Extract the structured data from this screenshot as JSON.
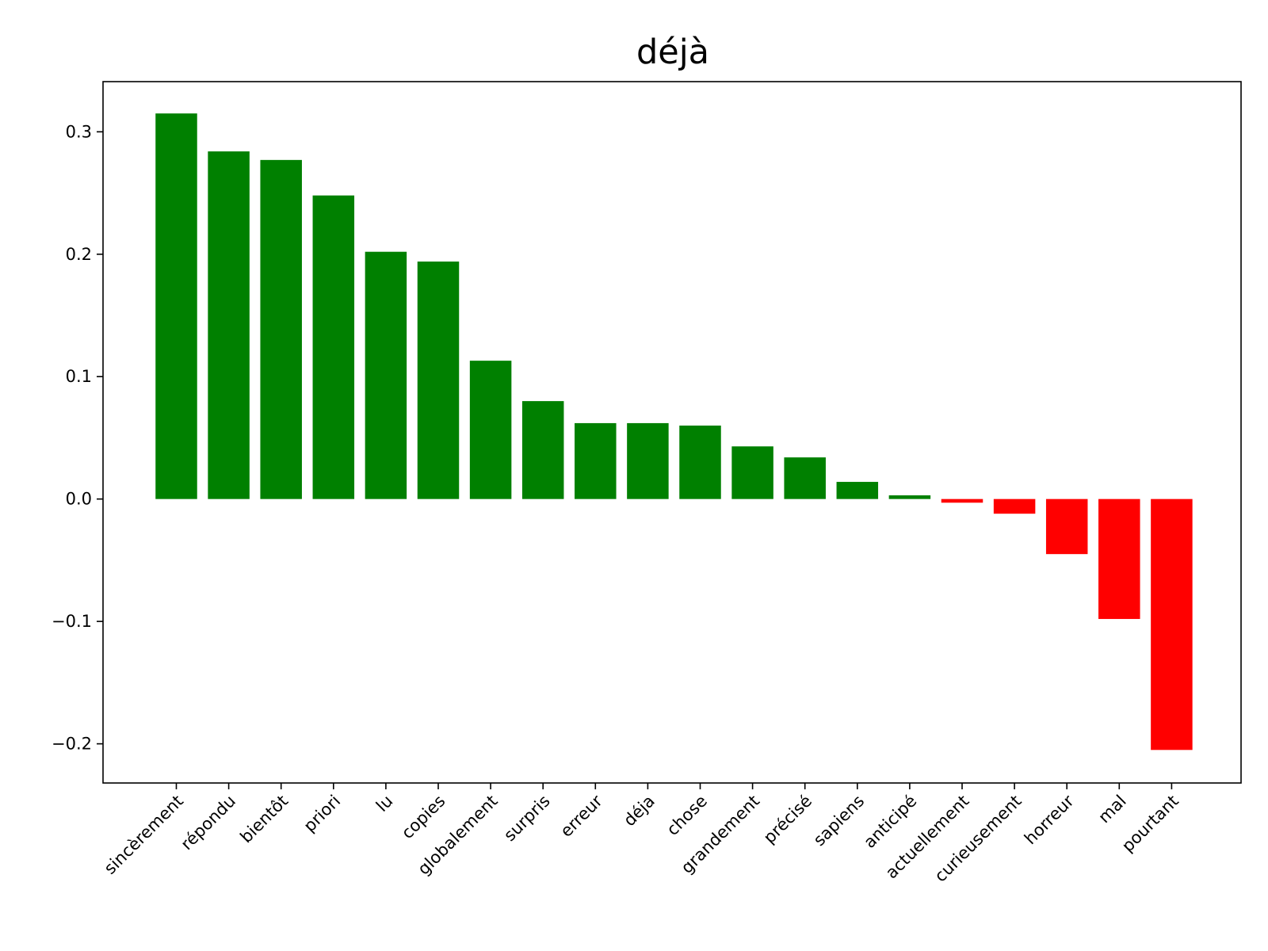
{
  "chart_data": {
    "type": "bar",
    "title": "déjà",
    "xlabel": "",
    "ylabel": "",
    "categories": [
      "sincèrement",
      "répondu",
      "bientôt",
      "priori",
      "lu",
      "copies",
      "globalement",
      "surpris",
      "erreur",
      "déja",
      "chose",
      "grandement",
      "précisé",
      "sapiens",
      "anticipé",
      "actuellement",
      "curieusement",
      "horreur",
      "mal",
      "pourtant"
    ],
    "values": [
      0.315,
      0.284,
      0.277,
      0.248,
      0.202,
      0.194,
      0.113,
      0.08,
      0.062,
      0.062,
      0.06,
      0.043,
      0.034,
      0.014,
      0.003,
      -0.003,
      -0.012,
      -0.045,
      -0.098,
      -0.205
    ],
    "ylim": [
      -0.232,
      0.341
    ],
    "yticks": [
      -0.2,
      -0.1,
      0.0,
      0.1,
      0.2,
      0.3
    ],
    "ytick_labels": [
      "−0.2",
      "−0.1",
      "0.0",
      "0.1",
      "0.2",
      "0.3"
    ],
    "x_tick_rotation": 45,
    "grid": false,
    "legend": false,
    "colors": {
      "positive": "#008000",
      "negative": "#ff0000"
    }
  }
}
